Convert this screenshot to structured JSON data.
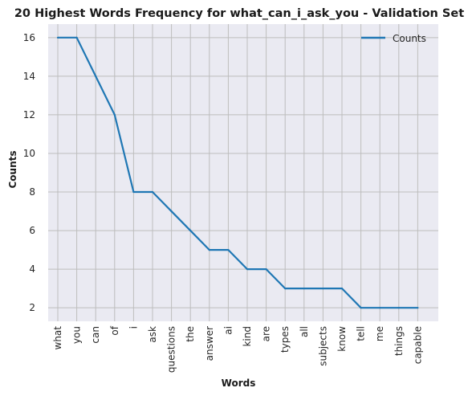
{
  "chart_data": {
    "type": "line",
    "title": "20 Highest Words Frequency for what_can_i_ask_you - Validation Set",
    "xlabel": "Words",
    "ylabel": "Counts",
    "categories": [
      "what",
      "you",
      "can",
      "of",
      "i",
      "ask",
      "questions",
      "the",
      "answer",
      "ai",
      "kind",
      "are",
      "types",
      "all",
      "subjects",
      "know",
      "tell",
      "me",
      "things",
      "capable"
    ],
    "series": [
      {
        "name": "Counts",
        "values": [
          16,
          16,
          14,
          12,
          8,
          8,
          7,
          6,
          5,
          5,
          4,
          4,
          3,
          3,
          3,
          3,
          2,
          2,
          2,
          2
        ]
      }
    ],
    "yticks": [
      2,
      4,
      6,
      8,
      10,
      12,
      14,
      16
    ],
    "ylim": [
      1.3,
      16.7
    ],
    "grid": true,
    "legend_position": "top-right",
    "colors": {
      "line": "#1f77b4",
      "plot_bg": "#eaeaf2",
      "grid": "#bdbdbd"
    }
  }
}
